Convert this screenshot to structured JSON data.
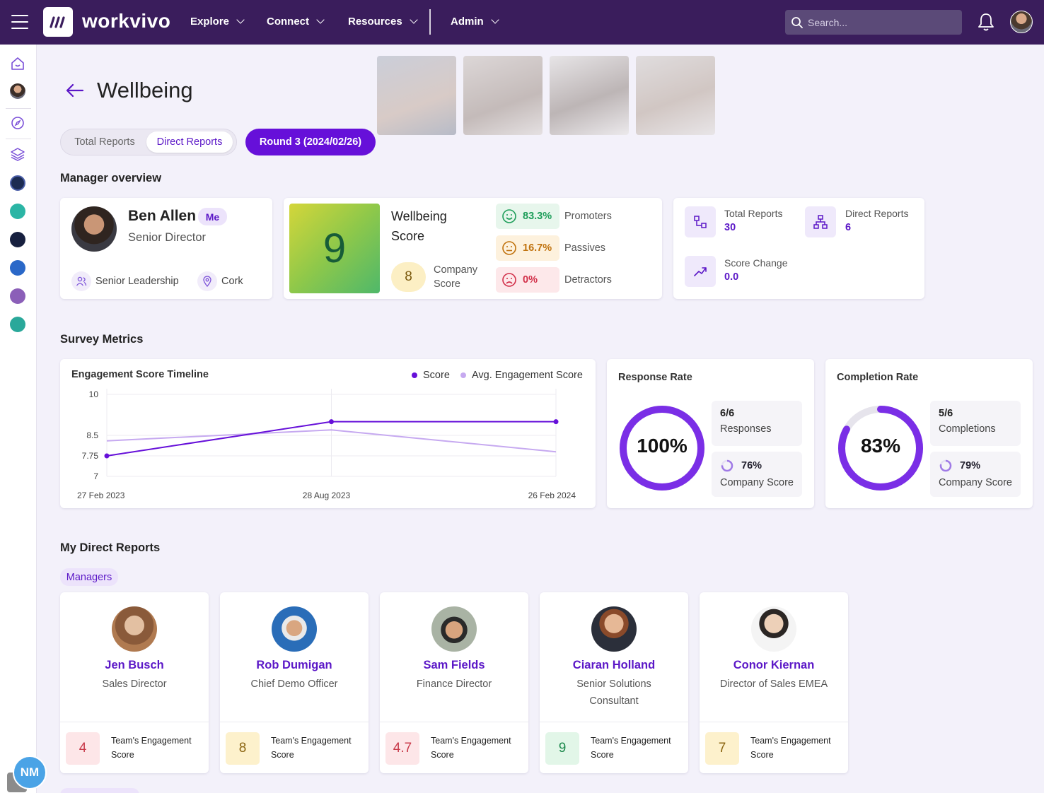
{
  "app": {
    "logo_text": "workvivo"
  },
  "nav": {
    "items": [
      "Explore",
      "Connect",
      "Resources",
      "Admin"
    ],
    "search_placeholder": "Search..."
  },
  "sidebar": {
    "icons": [
      "home-icon",
      "profile-avatar",
      "compass-icon",
      "layers-icon",
      "space-1",
      "space-2",
      "space-3",
      "space-4",
      "space-5",
      "space-6"
    ],
    "user_initials": "NM"
  },
  "page": {
    "title": "Wellbeing",
    "tabs": [
      "Total Reports",
      "Direct Reports"
    ],
    "active_tab": "Direct Reports",
    "round_label": "Round 3 (2024/02/26)"
  },
  "manager_overview": {
    "heading": "Manager overview",
    "name": "Ben Allen",
    "badge": "Me",
    "role": "Senior Director",
    "department": "Senior Leadership",
    "location": "Cork",
    "wellbeing_score": "9",
    "wellbeing_label": "Wellbeing Score",
    "company_score": "8",
    "company_score_label": "Company Score",
    "breakdown": [
      {
        "pct": "83.3%",
        "label": "Promoters",
        "color": "#1e9e5a",
        "bg": "#e7f6ec"
      },
      {
        "pct": "16.7%",
        "label": "Passives",
        "color": "#c0720d",
        "bg": "#fdf1dd"
      },
      {
        "pct": "0%",
        "label": "Detractors",
        "color": "#d2304a",
        "bg": "#fde8ea"
      }
    ],
    "stats": {
      "total_reports_label": "Total Reports",
      "total_reports": "30",
      "direct_reports_label": "Direct Reports",
      "direct_reports": "6",
      "score_change_label": "Score Change",
      "score_change": "0.0"
    }
  },
  "survey_metrics": {
    "heading": "Survey Metrics",
    "chart_title": "Engagement Score Timeline",
    "response_rate": {
      "title": "Response Rate",
      "value": "100%",
      "fraction": 1.0,
      "count": "6/6",
      "count_label": "Responses",
      "company_pct": "76%",
      "company_fraction": 0.76,
      "company_label": "Company Score"
    },
    "completion_rate": {
      "title": "Completion Rate",
      "value": "83%",
      "fraction": 0.83,
      "count": "5/6",
      "count_label": "Completions",
      "company_pct": "79%",
      "company_fraction": 0.79,
      "company_label": "Company Score"
    }
  },
  "chart_data": {
    "type": "line",
    "title": "Engagement Score Timeline",
    "x": [
      "27 Feb 2023",
      "28 Aug 2023",
      "26 Feb 2024"
    ],
    "y_ticks": [
      7,
      7.75,
      8.5,
      10
    ],
    "ylim": [
      7,
      10
    ],
    "series": [
      {
        "name": "Score",
        "values": [
          7.75,
          9,
          9
        ],
        "color": "#6610d9"
      },
      {
        "name": "Avg. Engagement Score",
        "values": [
          8.3,
          8.7,
          7.9
        ],
        "color": "#c6a9f0"
      }
    ],
    "legend": "top-right",
    "grid": true
  },
  "direct_reports": {
    "heading": "My Direct Reports",
    "group_label": "Managers",
    "score_label": "Team's Engagement Score",
    "people": [
      {
        "name": "Jen Busch",
        "role": "Sales Director",
        "score": "4",
        "score_color": "#c93a4a",
        "score_bg": "#fde6e8"
      },
      {
        "name": "Rob Dumigan",
        "role": "Chief Demo Officer",
        "score": "8",
        "score_color": "#8a6410",
        "score_bg": "#fdf1cc"
      },
      {
        "name": "Sam Fields",
        "role": "Finance Director",
        "score": "4.7",
        "score_color": "#c93a4a",
        "score_bg": "#fde6e8"
      },
      {
        "name": "Ciaran Holland",
        "role": "Senior Solutions Consultant",
        "score": "9",
        "score_color": "#1f8a4e",
        "score_bg": "#e2f6e8"
      },
      {
        "name": "Conor Kiernan",
        "role": "Director of Sales EMEA",
        "score": "7",
        "score_color": "#8a6410",
        "score_bg": "#fdf1cc"
      }
    ]
  }
}
